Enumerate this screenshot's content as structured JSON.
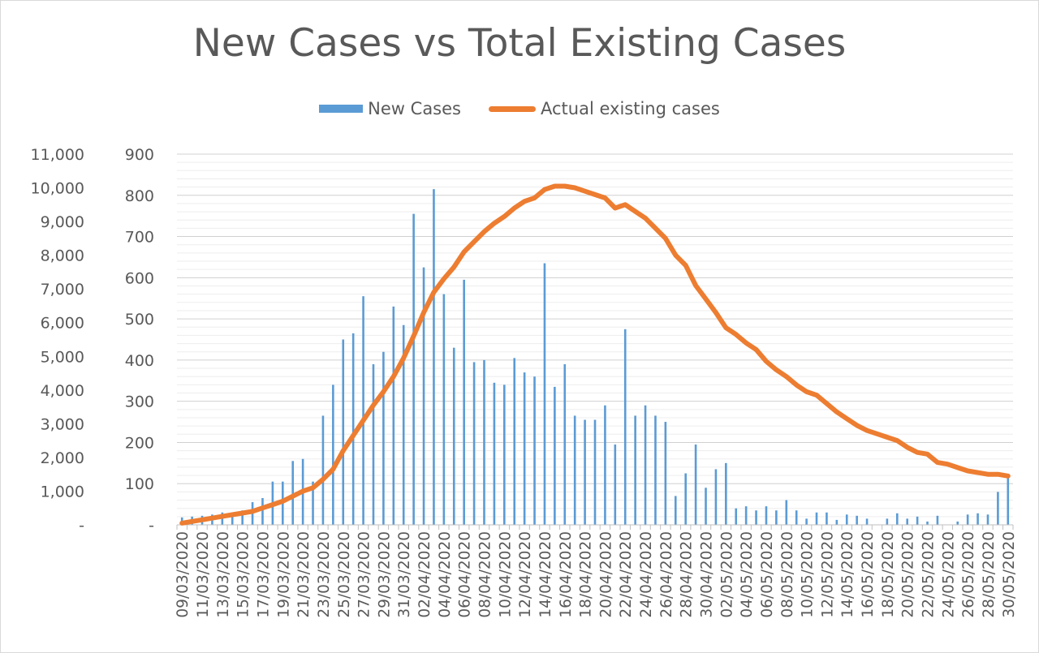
{
  "chart_data": {
    "type": "bar+line",
    "title": "New Cases vs Total Existing Cases",
    "legend_position": "top",
    "grid": true,
    "x": [
      "09/03/2020",
      "10/03/2020",
      "11/03/2020",
      "12/03/2020",
      "13/03/2020",
      "14/03/2020",
      "15/03/2020",
      "16/03/2020",
      "17/03/2020",
      "18/03/2020",
      "19/03/2020",
      "20/03/2020",
      "21/03/2020",
      "22/03/2020",
      "23/03/2020",
      "24/03/2020",
      "25/03/2020",
      "26/03/2020",
      "27/03/2020",
      "28/03/2020",
      "29/03/2020",
      "30/03/2020",
      "31/03/2020",
      "01/04/2020",
      "02/04/2020",
      "03/04/2020",
      "04/04/2020",
      "05/04/2020",
      "06/04/2020",
      "07/04/2020",
      "08/04/2020",
      "09/04/2020",
      "10/04/2020",
      "11/04/2020",
      "12/04/2020",
      "13/04/2020",
      "14/04/2020",
      "15/04/2020",
      "16/04/2020",
      "17/04/2020",
      "18/04/2020",
      "19/04/2020",
      "20/04/2020",
      "21/04/2020",
      "22/04/2020",
      "23/04/2020",
      "24/04/2020",
      "25/04/2020",
      "26/04/2020",
      "27/04/2020",
      "28/04/2020",
      "29/04/2020",
      "30/04/2020",
      "01/05/2020",
      "02/05/2020",
      "03/05/2020",
      "04/05/2020",
      "05/05/2020",
      "06/05/2020",
      "07/05/2020",
      "08/05/2020",
      "09/05/2020",
      "10/05/2020",
      "11/05/2020",
      "12/05/2020",
      "13/05/2020",
      "14/05/2020",
      "15/05/2020",
      "16/05/2020",
      "17/05/2020",
      "18/05/2020",
      "19/05/2020",
      "20/05/2020",
      "21/05/2020",
      "22/05/2020",
      "23/05/2020",
      "24/05/2020",
      "25/05/2020",
      "26/05/2020",
      "27/05/2020",
      "28/05/2020",
      "29/05/2020",
      "30/05/2020"
    ],
    "x_tick_labels": [
      "09/03/2020",
      "11/03/2020",
      "13/03/2020",
      "15/03/2020",
      "17/03/2020",
      "19/03/2020",
      "21/03/2020",
      "23/03/2020",
      "25/03/2020",
      "27/03/2020",
      "29/03/2020",
      "31/03/2020",
      "02/04/2020",
      "04/04/2020",
      "06/04/2020",
      "08/04/2020",
      "10/04/2020",
      "12/04/2020",
      "14/04/2020",
      "16/04/2020",
      "18/04/2020",
      "20/04/2020",
      "22/04/2020",
      "24/04/2020",
      "26/04/2020",
      "28/04/2020",
      "30/04/2020",
      "02/05/2020",
      "04/05/2020",
      "06/05/2020",
      "08/05/2020",
      "10/05/2020",
      "12/05/2020",
      "14/05/2020",
      "16/05/2020",
      "18/05/2020",
      "20/05/2020",
      "22/05/2020",
      "24/05/2020",
      "26/05/2020",
      "28/05/2020",
      "30/05/2020"
    ],
    "y_left": {
      "range": [
        0,
        11000
      ],
      "ticks": [
        "-",
        "1,000",
        "2,000",
        "3,000",
        "4,000",
        "5,000",
        "6,000",
        "7,000",
        "8,000",
        "9,000",
        "10,000",
        "11,000"
      ],
      "series": "Actual existing cases"
    },
    "y_right": {
      "range": [
        0,
        900
      ],
      "ticks": [
        "-",
        "100",
        "200",
        "300",
        "400",
        "500",
        "600",
        "700",
        "800",
        "900"
      ],
      "series": "New Cases"
    },
    "series": [
      {
        "name": "New Cases",
        "kind": "bar",
        "axis": "right",
        "color": "#5b9bd5",
        "values": [
          18,
          20,
          22,
          25,
          30,
          30,
          35,
          55,
          65,
          105,
          105,
          155,
          160,
          105,
          265,
          340,
          450,
          465,
          555,
          390,
          420,
          530,
          485,
          755,
          625,
          815,
          560,
          430,
          595,
          395,
          400,
          345,
          340,
          405,
          370,
          360,
          635,
          335,
          390,
          265,
          255,
          255,
          290,
          195,
          475,
          265,
          290,
          265,
          250,
          70,
          125,
          195,
          90,
          135,
          150,
          40,
          45,
          35,
          45,
          35,
          60,
          35,
          15,
          30,
          30,
          12,
          25,
          22,
          15,
          0,
          15,
          28,
          15,
          20,
          8,
          22,
          0,
          8,
          25,
          28,
          25,
          80,
          120
        ]
      },
      {
        "name": "Actual existing cases",
        "kind": "line",
        "axis": "left",
        "color": "#ed7d31",
        "values": [
          50,
          100,
          150,
          200,
          250,
          300,
          350,
          400,
          500,
          600,
          700,
          850,
          1000,
          1100,
          1350,
          1650,
          2200,
          2650,
          3100,
          3550,
          3950,
          4400,
          4950,
          5600,
          6300,
          6900,
          7300,
          7650,
          8100,
          8400,
          8700,
          8950,
          9150,
          9400,
          9600,
          9700,
          9950,
          10050,
          10050,
          10000,
          9900,
          9800,
          9700,
          9400,
          9500,
          9300,
          9100,
          8800,
          8500,
          8000,
          7700,
          7100,
          6700,
          6300,
          5850,
          5650,
          5400,
          5200,
          4850,
          4600,
          4400,
          4150,
          3950,
          3850,
          3600,
          3350,
          3150,
          2950,
          2800,
          2700,
          2600,
          2500,
          2300,
          2150,
          2100,
          1850,
          1800,
          1700,
          1600,
          1550,
          1500,
          1500,
          1450
        ]
      }
    ]
  }
}
